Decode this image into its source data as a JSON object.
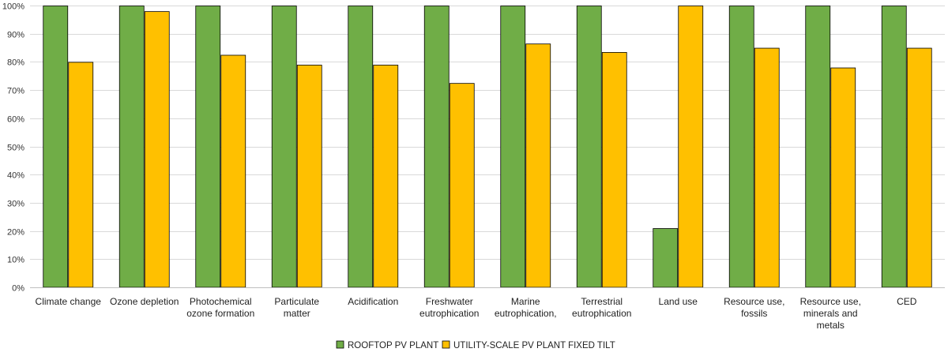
{
  "chart_data": {
    "type": "bar",
    "title": "",
    "xlabel": "",
    "ylabel": "",
    "ylim": [
      0,
      100
    ],
    "y_ticks": [
      "0%",
      "10%",
      "20%",
      "30%",
      "40%",
      "50%",
      "60%",
      "70%",
      "80%",
      "90%",
      "100%"
    ],
    "grid": true,
    "legend_position": "bottom",
    "categories": [
      [
        "Climate change"
      ],
      [
        "Ozone depletion"
      ],
      [
        "Photochemical",
        "ozone formation"
      ],
      [
        "Particulate",
        "matter"
      ],
      [
        "Acidification"
      ],
      [
        "Freshwater",
        "eutrophication"
      ],
      [
        "Marine",
        "eutrophication,"
      ],
      [
        "Terrestrial",
        "eutrophication"
      ],
      [
        "Land use"
      ],
      [
        "Resource use,",
        "fossils"
      ],
      [
        "Resource use,",
        "minerals and",
        "metals"
      ],
      [
        "CED"
      ]
    ],
    "series": [
      {
        "name": "ROOFTOP PV PLANT",
        "color": "#70ad47",
        "values": [
          100,
          100,
          100,
          100,
          100,
          100,
          100,
          100,
          21,
          100,
          100,
          100
        ]
      },
      {
        "name": "UTILITY-SCALE PV PLANT FIXED TILT",
        "color": "#ffc000",
        "values": [
          80,
          98,
          82.5,
          79,
          79,
          72.5,
          86.5,
          83.5,
          100,
          85,
          78,
          85
        ]
      }
    ]
  }
}
